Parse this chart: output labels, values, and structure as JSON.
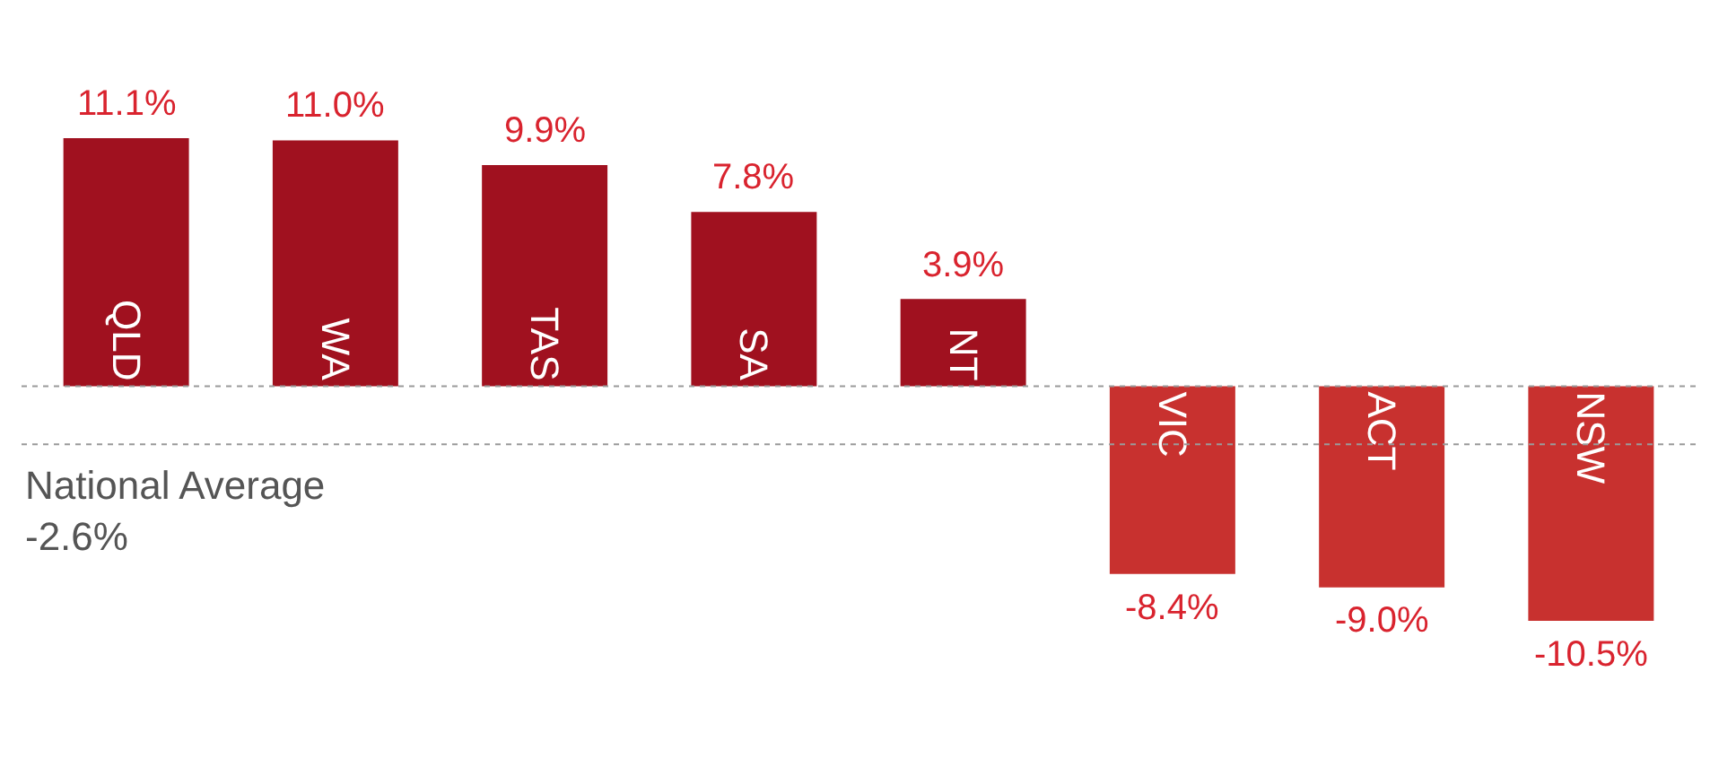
{
  "chart_data": {
    "type": "bar",
    "categories": [
      "QLD",
      "WA",
      "TAS",
      "SA",
      "NT",
      "VIC",
      "ACT",
      "NSW"
    ],
    "values": [
      11.1,
      11.0,
      9.9,
      7.8,
      3.9,
      -8.4,
      -9.0,
      -10.5
    ],
    "colors": [
      "#a0111f",
      "#a0111f",
      "#a0111f",
      "#a0111f",
      "#a0111f",
      "#c8312f",
      "#c8312f",
      "#c8312f"
    ],
    "value_labels": [
      "11.1%",
      "11.0%",
      "9.9%",
      "7.8%",
      "3.9%",
      "-8.4%",
      "-9.0%",
      "-10.5%"
    ],
    "ref_lines": [
      {
        "axis": "y",
        "value": 0,
        "color": "#9a9a9a",
        "line_style": "dotted"
      },
      {
        "axis": "y",
        "value": -2.6,
        "label": "National Average\n-2.6%",
        "color": "#9a9a9a",
        "line_style": "dotted"
      }
    ],
    "legend": false
  }
}
